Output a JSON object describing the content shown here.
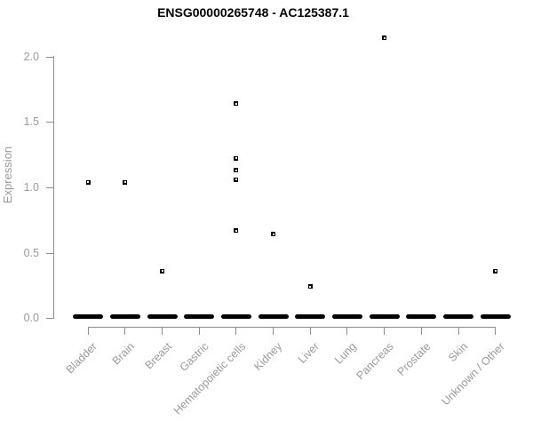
{
  "chart": {
    "background": "#ffffff",
    "axis_color": "#8c8c8c",
    "label_color": "#9a9a9a",
    "point_color": "#000000",
    "title_color": "#000000"
  },
  "chart_data": {
    "type": "scatter",
    "title": "ENSG00000265748 - AC125387.1",
    "xlabel": "",
    "ylabel": "Expression",
    "ylim": [
      0.0,
      2.2
    ],
    "yticks": [
      "0.0",
      "0.5",
      "1.0",
      "1.5",
      "2.0"
    ],
    "grid": false,
    "legend": "none",
    "marker": "open-square",
    "categories": [
      "Bladder",
      "Brain",
      "Breast",
      "Gastric",
      "Hematopoietic cells",
      "Kidney",
      "Liver",
      "Lung",
      "Pancreas",
      "Prostate",
      "Skin",
      "Unknown / Other"
    ],
    "series": [
      {
        "category": "Bladder",
        "values": [
          1.04
        ],
        "zero_cluster": true
      },
      {
        "category": "Brain",
        "values": [
          1.04
        ],
        "zero_cluster": true
      },
      {
        "category": "Breast",
        "values": [
          0.36
        ],
        "zero_cluster": true
      },
      {
        "category": "Gastric",
        "values": [],
        "zero_cluster": true
      },
      {
        "category": "Hematopoietic cells",
        "values": [
          1.64,
          1.22,
          1.13,
          1.06,
          0.67
        ],
        "zero_cluster": true
      },
      {
        "category": "Kidney",
        "values": [
          0.64
        ],
        "zero_cluster": true
      },
      {
        "category": "Liver",
        "values": [
          0.24
        ],
        "zero_cluster": true
      },
      {
        "category": "Lung",
        "values": [],
        "zero_cluster": true
      },
      {
        "category": "Pancreas",
        "values": [
          2.14
        ],
        "zero_cluster": true
      },
      {
        "category": "Prostate",
        "values": [],
        "zero_cluster": true
      },
      {
        "category": "Skin",
        "values": [],
        "zero_cluster": true
      },
      {
        "category": "Unknown / Other",
        "values": [
          0.36
        ],
        "zero_cluster": true
      }
    ]
  }
}
